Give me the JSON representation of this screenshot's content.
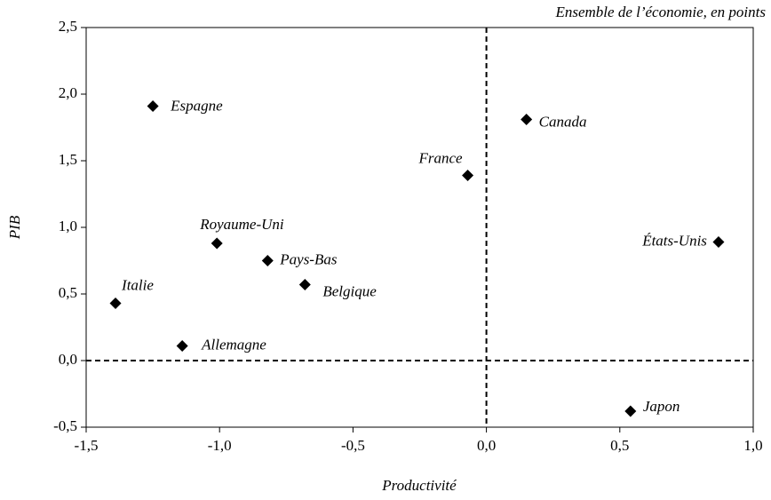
{
  "chart_data": {
    "type": "scatter",
    "subtitle": "Ensemble de l’économie, en points",
    "x_label": "Productivité",
    "y_label": "PIB",
    "series": [
      {
        "color": "#000000",
        "labels": [
          "Espagne",
          "Canada",
          "France",
          "Royaume-Uni",
          "Pays-Bas",
          "Belgique",
          "Italie",
          "Allemagne",
          "États-Unis",
          "Japon"
        ],
        "x": [
          -1.25,
          0.15,
          -0.07,
          -1.01,
          -0.82,
          -0.68,
          -1.39,
          -1.14,
          0.87,
          0.54
        ],
        "values": [
          1.91,
          1.81,
          1.39,
          0.88,
          0.75,
          0.57,
          0.43,
          0.11,
          0.89,
          -0.38
        ]
      }
    ],
    "xlim": [
      -1.5,
      1.0
    ],
    "xticks": [
      {
        "value": -1.5,
        "label": "-1,5"
      },
      {
        "value": -1.0,
        "label": "-1,0"
      },
      {
        "value": -0.5,
        "label": "-0,5"
      },
      {
        "value": 0,
        "label": "0,0"
      },
      {
        "value": 0.5,
        "label": "0,5"
      },
      {
        "value": 1.0,
        "label": "1,0"
      }
    ],
    "ylim": [
      -0.5,
      2.5
    ],
    "yticks": [
      {
        "value": -0.5,
        "label": "-0,5"
      },
      {
        "value": 0,
        "label": "0,0"
      },
      {
        "value": 0.5,
        "label": "0,5"
      },
      {
        "value": 1.0,
        "label": "1,0"
      },
      {
        "value": 1.5,
        "label": "1,5"
      },
      {
        "value": 2.0,
        "label": "2,0"
      },
      {
        "value": 2.5,
        "label": "2,5"
      }
    ]
  }
}
